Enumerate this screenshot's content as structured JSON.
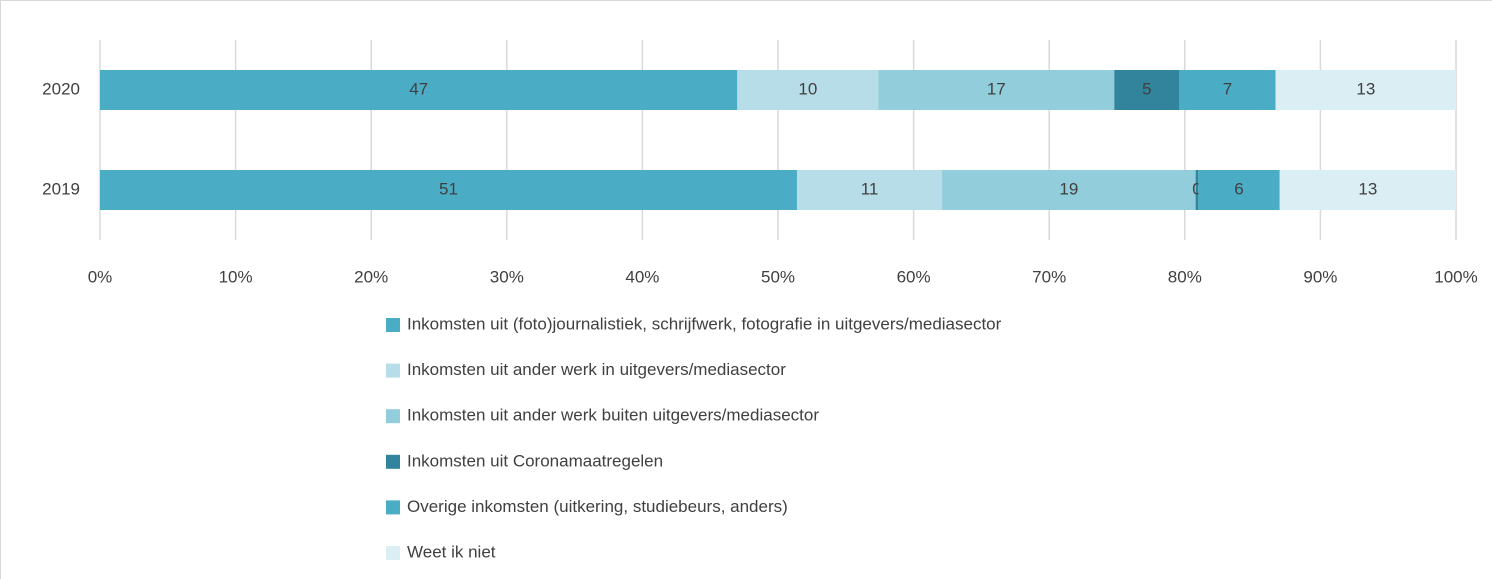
{
  "chart_data": {
    "type": "bar",
    "orientation": "horizontal",
    "stacked": true,
    "categories": [
      "2020",
      "2019"
    ],
    "series": [
      {
        "name": "Inkomsten uit (foto)journalistiek, schrijfwerk, fotografie in uitgevers/mediasector",
        "color": "#4bacc6",
        "values": [
          47.0,
          51.4
        ],
        "value_labels": [
          "47",
          "51"
        ]
      },
      {
        "name": "Inkomsten uit ander werk in uitgevers/mediasector",
        "color": "#b7dde8",
        "values": [
          10.4,
          10.7
        ],
        "value_labels": [
          "10",
          "11"
        ]
      },
      {
        "name": "Inkomsten uit ander werk buiten uitgevers/mediasector",
        "color": "#92cddc",
        "values": [
          17.4,
          18.7
        ],
        "value_labels": [
          "17",
          "19"
        ]
      },
      {
        "name": "Inkomsten uit Coronamaatregelen",
        "color": "#31849b",
        "values": [
          4.8,
          0.2
        ],
        "value_labels": [
          "5",
          "0"
        ]
      },
      {
        "name": "Overige inkomsten (uitkering, studiebeurs, anders)",
        "color": "#4bacc6",
        "values": [
          7.1,
          6.0
        ],
        "value_labels": [
          "7",
          "6"
        ]
      },
      {
        "name": "Weet ik niet",
        "color": "#daeef3",
        "values": [
          13.3,
          13.0
        ],
        "value_labels": [
          "13",
          "13"
        ]
      }
    ],
    "xlim": [
      0,
      100
    ],
    "xticks": [
      {
        "value": 0,
        "label": "0%"
      },
      {
        "value": 10,
        "label": "10%"
      },
      {
        "value": 20,
        "label": "20%"
      },
      {
        "value": 30,
        "label": "30%"
      },
      {
        "value": 40,
        "label": "40%"
      },
      {
        "value": 50,
        "label": "50%"
      },
      {
        "value": 60,
        "label": "60%"
      },
      {
        "value": 70,
        "label": "70%"
      },
      {
        "value": 80,
        "label": "80%"
      },
      {
        "value": 90,
        "label": "90%"
      },
      {
        "value": 100,
        "label": "100%"
      }
    ],
    "grid": true,
    "legend": "bottom"
  }
}
